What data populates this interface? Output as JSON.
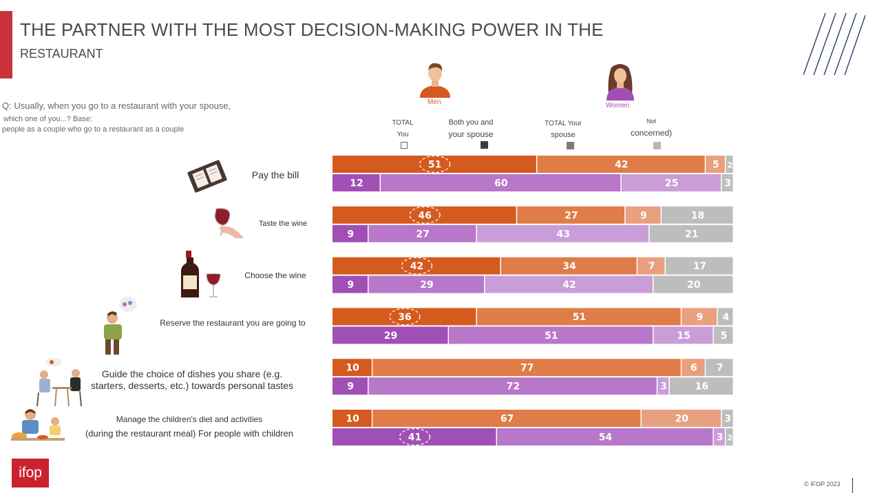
{
  "header": {
    "title_line1": "THE PARTNER WITH THE MOST DECISION-MAKING POWER IN THE",
    "title_line2": "RESTAURANT",
    "question": "Q: Usually, when you go to a restaurant with your spouse,",
    "base_line1": "which one of you...? Base:",
    "base_line2": "people as a couple who go to a restaurant as a couple"
  },
  "genders": {
    "men": "Men",
    "women": "Women"
  },
  "legend": [
    {
      "line1": "TOTAL",
      "line2": "You",
      "color": "#ffffff"
    },
    {
      "line1": "Both you and",
      "line2": "your spouse",
      "color": "#3d3d3d"
    },
    {
      "line1": "TOTAL Your",
      "line2": "spouse",
      "color": "#7a7a7a"
    },
    {
      "line1": "Not",
      "line2": "concerned)",
      "color": "#b9b9b9"
    }
  ],
  "row_labels": [
    [
      "Pay the bill"
    ],
    [
      "Taste the wine"
    ],
    [
      "Choose the wine"
    ],
    [
      "Reserve the restaurant you are going to"
    ],
    [
      "Guide the choice of dishes you share (e.g.",
      "starters, desserts, etc.) towards personal tastes"
    ],
    [
      "Manage the children's diet and activities",
      "(during the restaurant meal) For people with children"
    ]
  ],
  "chart_data": {
    "type": "bar",
    "orientation": "horizontal",
    "stacked": "100%",
    "categories": [
      "Pay the bill",
      "Taste the wine",
      "Choose the wine",
      "Reserve the restaurant you are going to",
      "Guide the choice of dishes you share (e.g. starters, desserts, etc.) towards personal tastes",
      "Manage the children's diet and activities (during the restaurant meal) For people with children"
    ],
    "segments": [
      "TOTAL You",
      "Both you and your spouse",
      "TOTAL Your spouse",
      "Not concerned)"
    ],
    "series": [
      {
        "name": "Men",
        "colors": [
          "#d45a1e",
          "#e07c48",
          "#e9a07e",
          "#bdbdbd"
        ],
        "values": [
          [
            51,
            42,
            5,
            2
          ],
          [
            46,
            27,
            9,
            18
          ],
          [
            42,
            34,
            7,
            17
          ],
          [
            36,
            51,
            9,
            4
          ],
          [
            10,
            77,
            6,
            7
          ],
          [
            10,
            67,
            20,
            3
          ]
        ],
        "circled": [
          true,
          true,
          true,
          true,
          false,
          false
        ]
      },
      {
        "name": "Women",
        "colors": [
          "#a04fb5",
          "#b877c8",
          "#cb9dd8",
          "#bdbdbd"
        ],
        "values": [
          [
            12,
            60,
            25,
            3
          ],
          [
            9,
            27,
            43,
            21
          ],
          [
            9,
            29,
            42,
            20
          ],
          [
            29,
            51,
            15,
            5
          ],
          [
            9,
            72,
            3,
            16
          ],
          [
            41,
            54,
            3,
            2
          ]
        ],
        "circled": [
          false,
          false,
          false,
          false,
          false,
          true
        ]
      }
    ]
  },
  "logo": "ifop",
  "copyright": "© IFOP 2023"
}
